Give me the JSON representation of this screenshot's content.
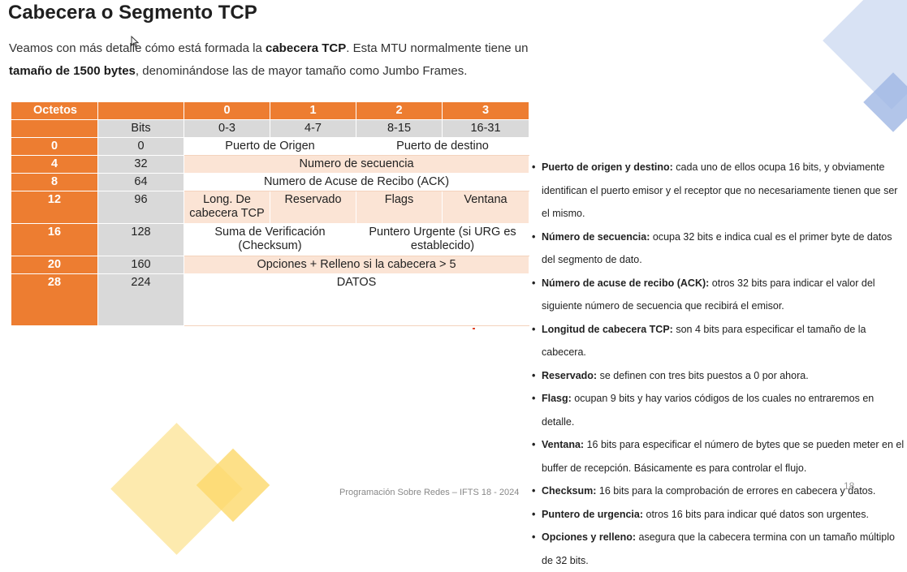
{
  "slide": {
    "title": "Cabecera o Segmento TCP",
    "intro": {
      "p1": "Veamos con más detalle cómo está formada la ",
      "b1": "cabecera TCP",
      "p2": ". Esta MTU normalmente tiene un ",
      "b2": "tamaño de 1500 bytes",
      "p3": ", denominándose las de mayor tamaño como Jumbo Frames."
    },
    "table": {
      "header": {
        "octetos": "Octetos",
        "c0": "0",
        "c1": "1",
        "c2": "2",
        "c3": "3"
      },
      "subheader": {
        "bits": "Bits",
        "r0": "0-3",
        "r1": "4-7",
        "r2": "8-15",
        "r3": "16-31"
      },
      "rows": [
        {
          "octet": "0",
          "bits": "0",
          "a": "Puerto de Origen",
          "b": "Puerto de destino"
        },
        {
          "octet": "4",
          "bits": "32",
          "a": "Numero de secuencia"
        },
        {
          "octet": "8",
          "bits": "64",
          "a": "Numero de Acuse de Recibo (ACK)"
        },
        {
          "octet": "12",
          "bits": "96",
          "a": "Long. De cabecera TCP",
          "b": "Reservado",
          "c": "Flags",
          "d": "Ventana"
        },
        {
          "octet": "16",
          "bits": "128",
          "a": "Suma de Verificación (Checksum)",
          "b": "Puntero Urgente (si URG es establecido)"
        },
        {
          "octet": "20",
          "bits": "160",
          "a": "Opciones + Relleno si la cabecera > 5"
        },
        {
          "octet": "28",
          "bits": "224",
          "a": "DATOS"
        }
      ]
    },
    "fields": [
      {
        "term": "Puerto de origen y destino:",
        "desc": " cada uno de ellos ocupa 16 bits, y obviamente identifican el puerto emisor y el receptor que no necesariamente tienen que ser el mismo."
      },
      {
        "term": "Número de secuencia:",
        "desc": " ocupa 32 bits e indica cual es el primer byte de datos del segmento de dato."
      },
      {
        "term": "Número de acuse de recibo (ACK):",
        "desc": " otros 32 bits para indicar el valor del siguiente número de secuencia que recibirá el emisor."
      },
      {
        "term": "Longitud de cabecera TCP:",
        "desc": " son 4 bits para especificar el tamaño de la cabecera."
      },
      {
        "term": "Reservado:",
        "desc": " se definen con tres bits puestos a 0 por ahora."
      },
      {
        "term": "Flasg:",
        "desc": " ocupan 9 bits y hay varios códigos de los cuales no entraremos en detalle."
      },
      {
        "term": "Ventana:",
        "desc": " 16 bits para especificar el número de bytes que se pueden meter en el buffer de recepción. Básicamente es para controlar el flujo."
      },
      {
        "term": "Checksum:",
        "desc": " 16 bits para la comprobación de errores en cabecera y datos."
      },
      {
        "term": "Puntero de urgencia:",
        "desc": " otros 16 bits para indicar qué datos son urgentes."
      },
      {
        "term": "Opciones y relleno:",
        "desc": " asegura que la cabecera termina con un tamaño múltiplo de 32 bits."
      }
    ],
    "footer": "Programación Sobre Redes – IFTS 18 - 2024",
    "page_number": "18"
  },
  "colors": {
    "accent_orange": "#ed7d31",
    "light_peach": "#fbe4d5",
    "gray_cell": "#d9d9d9",
    "deco_blue": "#9fb7e4",
    "deco_yellow": "#fcd86a"
  }
}
